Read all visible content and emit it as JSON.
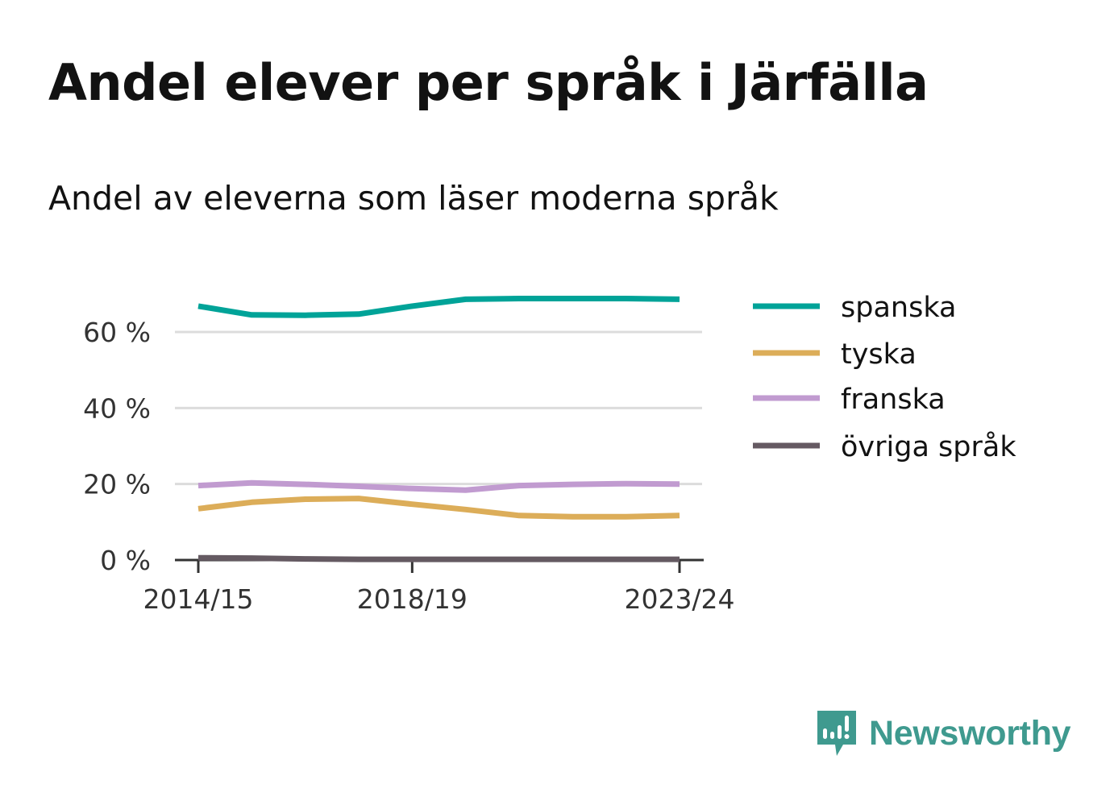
{
  "title": "Andel elever per språk i Järfälla",
  "subtitle": "Andel av eleverna som läser moderna språk",
  "logo": {
    "text": "Newsworthy",
    "icon": "newsworthy-logo-icon",
    "color": "#3f9a8f"
  },
  "chart_data": {
    "type": "line",
    "title": "Andel elever per språk i Järfälla",
    "subtitle": "Andel av eleverna som läser moderna språk",
    "xlabel": "",
    "ylabel": "",
    "x": [
      "2014/15",
      "2015/16",
      "2016/17",
      "2017/18",
      "2018/19",
      "2019/20",
      "2020/21",
      "2021/22",
      "2022/23",
      "2023/24"
    ],
    "x_tick_labels": [
      "2014/15",
      "2018/19",
      "2023/24"
    ],
    "y_ticks": [
      0,
      20,
      40,
      60
    ],
    "y_tick_labels": [
      "0 %",
      "20 %",
      "40 %",
      "60 %"
    ],
    "ylim": [
      0,
      71
    ],
    "grid": true,
    "legend_position": "right",
    "series": [
      {
        "name": "spanska",
        "color": "#00a398",
        "values": [
          66.8,
          64.5,
          64.4,
          64.7,
          66.8,
          68.6,
          68.8,
          68.8,
          68.8,
          68.6
        ]
      },
      {
        "name": "tyska",
        "color": "#dcad59",
        "values": [
          13.5,
          15.2,
          16.0,
          16.2,
          14.7,
          13.3,
          11.7,
          11.4,
          11.4,
          11.7
        ]
      },
      {
        "name": "franska",
        "color": "#c19bd0",
        "values": [
          19.6,
          20.3,
          19.9,
          19.4,
          18.8,
          18.4,
          19.6,
          19.9,
          20.1,
          20.0
        ]
      },
      {
        "name": "övriga språk",
        "color": "#655a62",
        "values": [
          0.6,
          0.5,
          0.3,
          0.2,
          0.2,
          0.2,
          0.2,
          0.2,
          0.2,
          0.2
        ]
      }
    ]
  }
}
